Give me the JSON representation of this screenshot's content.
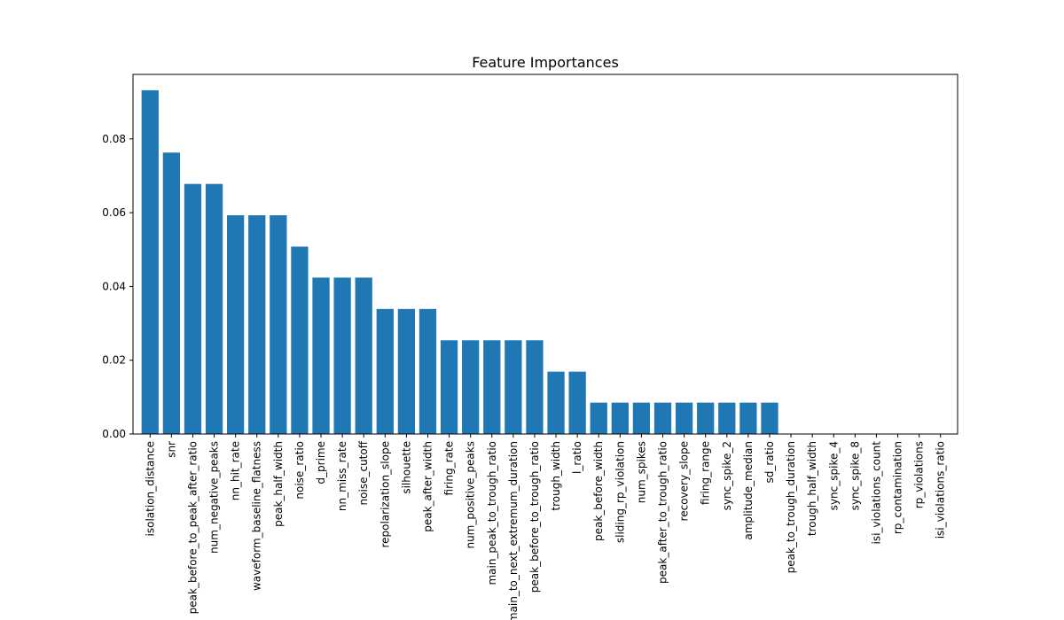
{
  "chart_data": {
    "type": "bar",
    "title": "Feature Importances",
    "xlabel": "",
    "ylabel": "",
    "ylim": [
      0,
      0.0975
    ],
    "yticks": [
      "0.00",
      "0.02",
      "0.04",
      "0.06",
      "0.08"
    ],
    "grid": false,
    "legend": "none",
    "bar_color": "#1f77b4",
    "categories": [
      "isolation_distance",
      "snr",
      "peak_before_to_peak_after_ratio",
      "num_negative_peaks",
      "nn_hit_rate",
      "waveform_baseline_flatness",
      "peak_half_width",
      "noise_ratio",
      "d_prime",
      "nn_miss_rate",
      "noise_cutoff",
      "repolarization_slope",
      "silhouette",
      "peak_after_width",
      "firing_rate",
      "num_positive_peaks",
      "main_peak_to_trough_ratio",
      "main_to_next_extremum_duration",
      "peak_before_to_trough_ratio",
      "trough_width",
      "l_ratio",
      "peak_before_width",
      "sliding_rp_violation",
      "num_spikes",
      "peak_after_to_trough_ratio",
      "recovery_slope",
      "firing_range",
      "sync_spike_2",
      "amplitude_median",
      "sd_ratio",
      "peak_to_trough_duration",
      "trough_half_width",
      "sync_spike_4",
      "sync_spike_8",
      "isi_violations_count",
      "rp_contamination",
      "rp_violations",
      "isi_violations_ratio"
    ],
    "values": [
      0.0932,
      0.0763,
      0.0678,
      0.0678,
      0.0593,
      0.0593,
      0.0593,
      0.0508,
      0.0424,
      0.0424,
      0.0424,
      0.0339,
      0.0339,
      0.0339,
      0.0254,
      0.0254,
      0.0254,
      0.0254,
      0.0254,
      0.0169,
      0.0169,
      0.0085,
      0.0085,
      0.0085,
      0.0085,
      0.0085,
      0.0085,
      0.0085,
      0.0085,
      0.0085,
      0,
      0,
      0,
      0,
      0,
      0,
      0,
      0
    ]
  }
}
